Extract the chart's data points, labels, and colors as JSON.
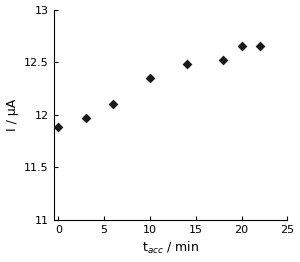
{
  "x": [
    0,
    3,
    6,
    10,
    14,
    18,
    20,
    22
  ],
  "y": [
    11.88,
    11.97,
    12.1,
    12.35,
    12.48,
    12.52,
    12.65,
    12.65
  ],
  "marker": "D",
  "marker_color": "#1a1a1a",
  "marker_size": 5,
  "xlabel": "t$_{acc}$ / min",
  "ylabel": "I / μA",
  "xlim": [
    -0.5,
    25
  ],
  "ylim": [
    11,
    13
  ],
  "xticks": [
    0,
    5,
    10,
    15,
    20,
    25
  ],
  "yticks": [
    11,
    11.5,
    12,
    12.5,
    13
  ],
  "ytick_labels": [
    "11",
    "11.5",
    "12",
    "12.5",
    "13"
  ],
  "xtick_labels": [
    "0",
    "5",
    "10",
    "15",
    "20",
    "25"
  ],
  "background_color": "#ffffff",
  "axes_color": "#000000",
  "tick_fontsize": 8,
  "label_fontsize": 9
}
